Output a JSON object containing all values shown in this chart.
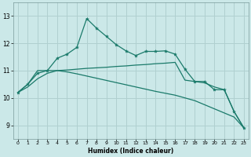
{
  "xlabel": "Humidex (Indice chaleur)",
  "background_color": "#cbe8e8",
  "grid_color": "#b0d0d0",
  "line_color": "#1a7a6a",
  "x_values": [
    0,
    1,
    2,
    3,
    4,
    5,
    6,
    7,
    8,
    9,
    10,
    11,
    12,
    13,
    14,
    15,
    16,
    17,
    18,
    19,
    20,
    21,
    22,
    23
  ],
  "series1": [
    10.2,
    10.5,
    10.9,
    11.0,
    11.45,
    11.6,
    11.85,
    12.9,
    12.55,
    12.25,
    11.95,
    11.72,
    11.55,
    11.7,
    11.7,
    11.72,
    11.6,
    11.05,
    10.6,
    10.6,
    10.3,
    10.3,
    9.5,
    8.9
  ],
  "series2": [
    10.2,
    10.5,
    11.0,
    11.0,
    11.0,
    11.02,
    11.05,
    11.08,
    11.1,
    11.12,
    11.15,
    11.17,
    11.2,
    11.22,
    11.25,
    11.27,
    11.3,
    10.65,
    10.6,
    10.55,
    10.4,
    10.3,
    9.5,
    8.9
  ],
  "series3": [
    10.2,
    10.4,
    10.7,
    10.9,
    11.0,
    10.95,
    10.88,
    10.8,
    10.72,
    10.64,
    10.56,
    10.48,
    10.4,
    10.32,
    10.24,
    10.17,
    10.1,
    10.0,
    9.9,
    9.75,
    9.6,
    9.45,
    9.3,
    8.9
  ],
  "ylim": [
    8.5,
    13.5
  ],
  "ytick_min": 9,
  "ytick_max": 13,
  "xlim": [
    -0.5,
    23.5
  ]
}
